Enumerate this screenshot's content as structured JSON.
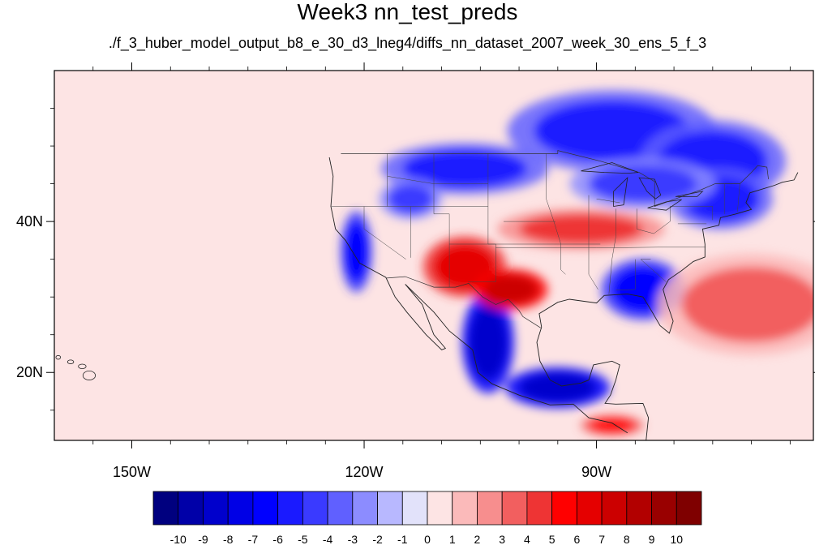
{
  "chart_data": {
    "type": "heatmap",
    "title": "Week3 nn_test_preds",
    "subtitle": "./f_3_huber_model_output_b8_e_30_d3_lneg4/diffs_nn_dataset_2007_week_30_ens_5_f_3",
    "map_extent": {
      "lon": [
        -160,
        -62
      ],
      "lat": [
        11,
        60
      ]
    },
    "x_ticks": [
      {
        "value": -150,
        "label": "150W"
      },
      {
        "value": -120,
        "label": "120W"
      },
      {
        "value": -90,
        "label": "90W"
      }
    ],
    "y_ticks": [
      {
        "value": 40,
        "label": "40N"
      },
      {
        "value": 20,
        "label": "20N"
      }
    ],
    "colorbar": {
      "labels": [
        "-10",
        "-9",
        "-8",
        "-7",
        "-6",
        "-5",
        "-4",
        "-3",
        "-2",
        "-1",
        "0",
        "1",
        "2",
        "3",
        "4",
        "5",
        "6",
        "7",
        "8",
        "9",
        "10"
      ],
      "colors": [
        "#00007f",
        "#0000a8",
        "#0000cc",
        "#0000e6",
        "#0000ff",
        "#1a1aff",
        "#3a3aff",
        "#6060ff",
        "#8c8cff",
        "#b8b8ff",
        "#e2e2fa",
        "#fde4e4",
        "#fbbaba",
        "#f78e8e",
        "#f25f5f",
        "#ee3434",
        "#ff0000",
        "#e50000",
        "#cc0000",
        "#b20000",
        "#990000",
        "#7f0000"
      ]
    },
    "features": [
      {
        "name": "blue-hudson-bay",
        "level": -5,
        "lon": -88,
        "lat": 52,
        "rx": 10,
        "ry": 4
      },
      {
        "name": "blue-quebec",
        "level": -5,
        "lon": -75,
        "lat": 48,
        "rx": 7,
        "ry": 4
      },
      {
        "name": "blue-northeast-us",
        "level": -5,
        "lon": -74,
        "lat": 43,
        "rx": 5,
        "ry": 3
      },
      {
        "name": "blue-montana",
        "level": -5,
        "lon": -107,
        "lat": 47,
        "rx": 8,
        "ry": 2.5
      },
      {
        "name": "blue-idaho",
        "level": -4,
        "lon": -114,
        "lat": 43,
        "rx": 3,
        "ry": 2
      },
      {
        "name": "blue-great-lakes",
        "level": -4,
        "lon": -84,
        "lat": 45,
        "rx": 7,
        "ry": 2.5
      },
      {
        "name": "blue-california-coast",
        "level": -6,
        "lon": -121,
        "lat": 36,
        "rx": 1.5,
        "ry": 4
      },
      {
        "name": "blue-florida-gulf",
        "level": -6,
        "lon": -84,
        "lat": 31,
        "rx": 4,
        "ry": 3
      },
      {
        "name": "blue-mexico-sierra",
        "level": -8,
        "lon": -104,
        "lat": 24,
        "rx": 2.5,
        "ry": 5
      },
      {
        "name": "blue-southern-mexico",
        "level": -8,
        "lon": -95,
        "lat": 18,
        "rx": 5,
        "ry": 2
      },
      {
        "name": "red-southwest",
        "level": 6,
        "lon": -107,
        "lat": 34,
        "rx": 4,
        "ry": 3
      },
      {
        "name": "red-texas",
        "level": 7,
        "lon": -101,
        "lat": 31,
        "rx": 3.5,
        "ry": 2
      },
      {
        "name": "red-central-plains",
        "level": 4,
        "lon": -92,
        "lat": 39,
        "rx": 8,
        "ry": 2
      },
      {
        "name": "red-atlantic",
        "level": 3,
        "lon": -70,
        "lat": 29,
        "rx": 9,
        "ry": 5
      },
      {
        "name": "red-pacific-central-america",
        "level": 5,
        "lon": -88,
        "lat": 13,
        "rx": 3,
        "ry": 1
      }
    ]
  }
}
